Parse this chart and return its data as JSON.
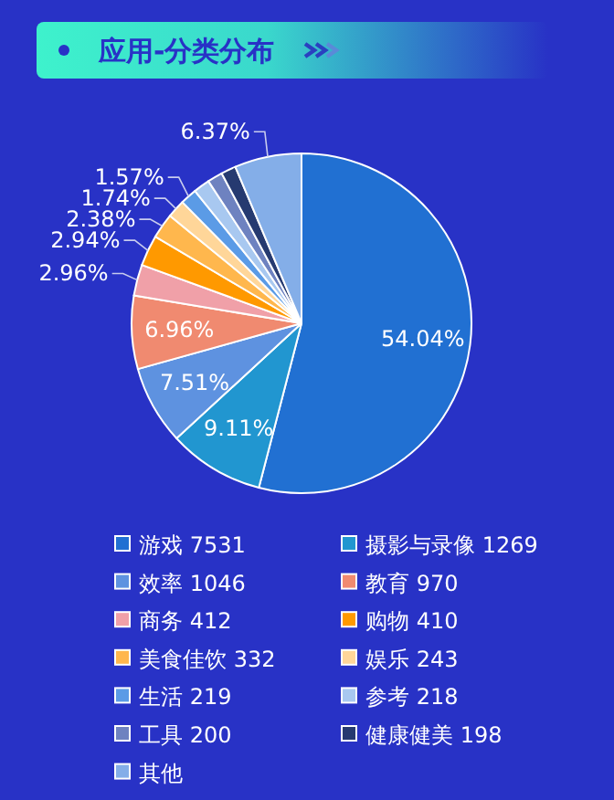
{
  "chart_data": {
    "type": "pie",
    "title": "应用-分类分布",
    "categories": [
      "游戏 7531",
      "摄影与录像 1269",
      "效率 1046",
      "教育 970",
      "商务 412",
      "购物 410",
      "美食佳饮 332",
      "娱乐 243",
      "生活 219",
      "参考 218",
      "工具 200",
      "健康健美 198",
      "其他"
    ],
    "values": [
      54.04,
      9.11,
      7.51,
      6.96,
      2.96,
      2.94,
      2.38,
      1.74,
      1.57,
      1.56,
      1.44,
      1.42,
      6.37
    ],
    "colors": [
      "#2170d2",
      "#2196d0",
      "#5e92e0",
      "#f08a70",
      "#f0a0a8",
      "#ff9900",
      "#ffb74d",
      "#ffd699",
      "#5b9be6",
      "#a8c8f0",
      "#6e82c0",
      "#263a70",
      "#84aee8"
    ],
    "value_labels": [
      "54.04%",
      "9.11%",
      "7.51%",
      "6.96%",
      "2.96%",
      "2.94%",
      "2.38%",
      "1.74%",
      "1.57%",
      null,
      null,
      null,
      "6.37%"
    ],
    "legend": "bottom"
  }
}
